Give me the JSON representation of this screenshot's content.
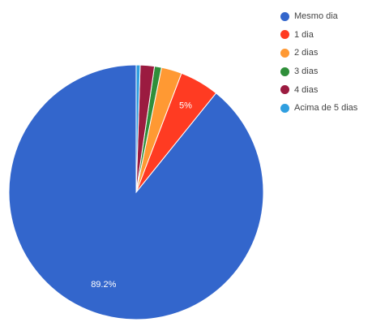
{
  "chart_data": {
    "type": "pie",
    "title": "",
    "labels": [
      "Mesmo dia",
      "1 dia",
      "2 dias",
      "3 dias",
      "4 dias",
      "Acima de 5 dias"
    ],
    "values": [
      89.2,
      5.0,
      2.6,
      0.9,
      1.8,
      0.5
    ],
    "colors": [
      "#3366cc",
      "#ff3b22",
      "#ff9933",
      "#2f8f3a",
      "#9b1b40",
      "#2f9fe0"
    ],
    "data_labels": [
      "89.2%",
      "5%",
      "",
      "",
      "",
      ""
    ],
    "start_angle_deg": 0,
    "direction": "counterclockwise",
    "legend_position": "top-right"
  }
}
